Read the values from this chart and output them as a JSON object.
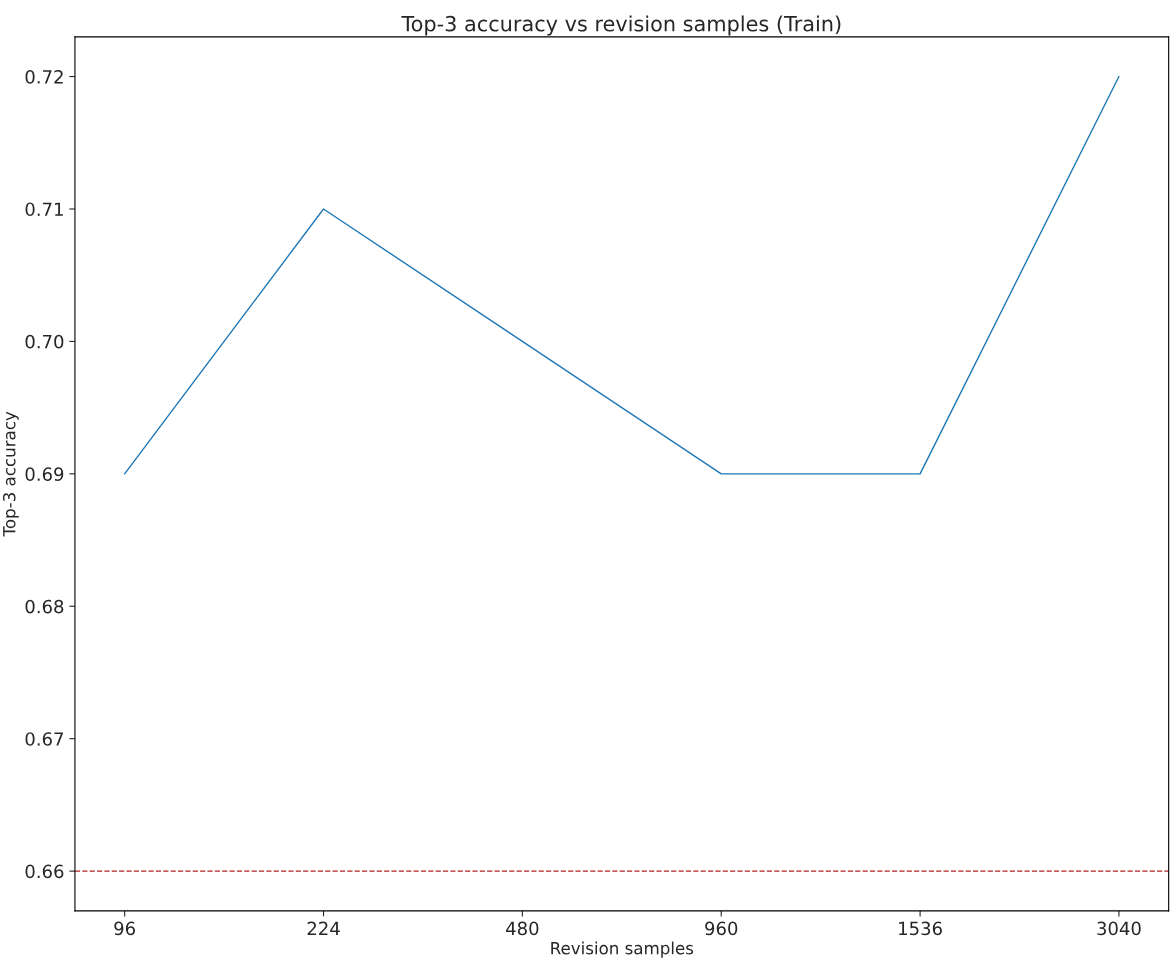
{
  "chart_data": {
    "type": "line",
    "title": "Top-3 accuracy vs revision samples (Train)",
    "xlabel": "Revision samples",
    "ylabel": "Top-3 accuracy",
    "categories": [
      "96",
      "224",
      "480",
      "960",
      "1536",
      "3040"
    ],
    "series": [
      {
        "color": "#1f77b4",
        "values": [
          0.69,
          0.71,
          0.7,
          0.69,
          0.69,
          0.72
        ]
      }
    ],
    "ylim": [
      0.657,
      0.723
    ],
    "yticks": [
      {
        "value": 0.66,
        "label": "0.66"
      },
      {
        "value": 0.67,
        "label": "0.67"
      },
      {
        "value": 0.68,
        "label": "0.68"
      },
      {
        "value": 0.69,
        "label": "0.69"
      },
      {
        "value": 0.7,
        "label": "0.70"
      },
      {
        "value": 0.71,
        "label": "0.71"
      },
      {
        "value": 0.72,
        "label": "0.72"
      }
    ],
    "ref_lines": [
      {
        "axis": "y",
        "value": 0.66,
        "color": "#b22222",
        "line_style": "dashed"
      }
    ],
    "grid": false,
    "legend": false
  }
}
